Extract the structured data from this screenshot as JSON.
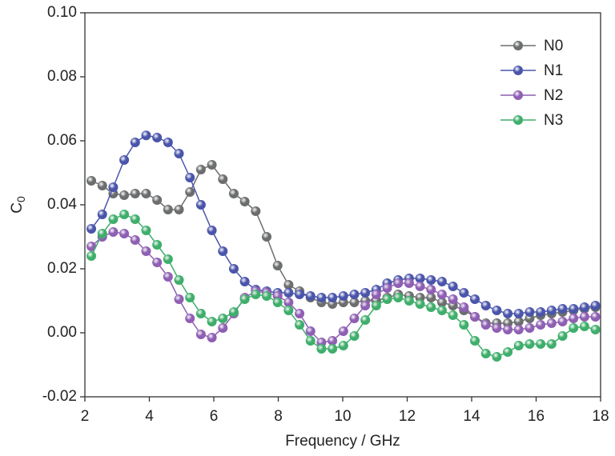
{
  "chart_data": {
    "type": "line",
    "x_label": "Frequency / GHz",
    "y_label": {
      "main": "C",
      "sub": "0"
    },
    "x": [
      2.2,
      2.54,
      2.88,
      3.22,
      3.56,
      3.9,
      4.24,
      4.58,
      4.92,
      5.26,
      5.6,
      5.94,
      6.28,
      6.62,
      6.96,
      7.3,
      7.64,
      7.98,
      8.32,
      8.66,
      9.0,
      9.34,
      9.68,
      10.02,
      10.36,
      10.7,
      11.04,
      11.38,
      11.72,
      12.06,
      12.4,
      12.74,
      13.08,
      13.42,
      13.76,
      14.1,
      14.44,
      14.78,
      15.12,
      15.46,
      15.8,
      16.14,
      16.48,
      16.82,
      17.16,
      17.5,
      17.84
    ],
    "series": [
      {
        "name": "N0",
        "color": "#6b6d6e",
        "values": [
          0.0475,
          0.046,
          0.0435,
          0.043,
          0.0435,
          0.0435,
          0.0415,
          0.0385,
          0.0385,
          0.044,
          0.051,
          0.0525,
          0.048,
          0.0435,
          0.041,
          0.038,
          0.03,
          0.021,
          0.015,
          0.013,
          0.011,
          0.0095,
          0.009,
          0.0095,
          0.0095,
          0.01,
          0.01,
          0.011,
          0.012,
          0.0115,
          0.011,
          0.011,
          0.0095,
          0.0085,
          0.007,
          0.005,
          0.003,
          0.003,
          0.003,
          0.0035,
          0.0045,
          0.0055,
          0.006,
          0.0065,
          0.007,
          0.0075,
          0.008
        ]
      },
      {
        "name": "N1",
        "color": "#4a55aa",
        "values": [
          0.0325,
          0.037,
          0.0455,
          0.054,
          0.0595,
          0.0617,
          0.061,
          0.0595,
          0.056,
          0.0485,
          0.04,
          0.032,
          0.0255,
          0.02,
          0.016,
          0.0135,
          0.013,
          0.0125,
          0.0125,
          0.012,
          0.0115,
          0.011,
          0.011,
          0.0115,
          0.012,
          0.0125,
          0.0135,
          0.0155,
          0.0165,
          0.017,
          0.017,
          0.0165,
          0.016,
          0.0145,
          0.0125,
          0.0105,
          0.0085,
          0.007,
          0.006,
          0.006,
          0.0065,
          0.0065,
          0.007,
          0.0075,
          0.0075,
          0.008,
          0.0085
        ]
      },
      {
        "name": "N2",
        "color": "#8e5fb3",
        "values": [
          0.027,
          0.03,
          0.0315,
          0.031,
          0.029,
          0.0255,
          0.022,
          0.0175,
          0.0105,
          0.0045,
          -0.0005,
          -0.0015,
          0.0015,
          0.006,
          0.011,
          0.013,
          0.0125,
          0.0115,
          0.0095,
          0.006,
          0.0005,
          -0.003,
          -0.0025,
          0.0005,
          0.0045,
          0.0085,
          0.012,
          0.014,
          0.0155,
          0.0155,
          0.0145,
          0.0135,
          0.012,
          0.0105,
          0.008,
          0.005,
          0.0025,
          0.0015,
          0.001,
          0.001,
          0.0015,
          0.0025,
          0.003,
          0.0035,
          0.0045,
          0.005,
          0.005
        ]
      },
      {
        "name": "N3",
        "color": "#3fae6b",
        "values": [
          0.024,
          0.031,
          0.0355,
          0.037,
          0.0355,
          0.032,
          0.0275,
          0.023,
          0.0165,
          0.011,
          0.006,
          0.0035,
          0.0045,
          0.0065,
          0.0105,
          0.012,
          0.0115,
          0.0095,
          0.007,
          0.0025,
          -0.0025,
          -0.005,
          -0.005,
          -0.004,
          -0.001,
          0.004,
          0.0085,
          0.0105,
          0.011,
          0.01,
          0.009,
          0.008,
          0.007,
          0.0055,
          0.0025,
          -0.0025,
          -0.0065,
          -0.0075,
          -0.006,
          -0.004,
          -0.0035,
          -0.0035,
          -0.0035,
          -0.001,
          0.0015,
          0.002,
          0.001
        ]
      }
    ],
    "xlim": [
      2,
      18
    ],
    "xticks": [
      2,
      4,
      6,
      8,
      10,
      12,
      14,
      16,
      18
    ],
    "ylim": [
      -0.02,
      0.1
    ],
    "yticks": [
      {
        "value": -0.02,
        "label": "-0.02"
      },
      {
        "value": 0,
        "label": "0.00"
      },
      {
        "value": 0.02,
        "label": "0.02"
      },
      {
        "value": 0.04,
        "label": "0.04"
      },
      {
        "value": 0.06,
        "label": "0.06"
      },
      {
        "value": 0.08,
        "label": "0.08"
      },
      {
        "value": 0.1,
        "label": "0.10"
      }
    ],
    "legend": "upper right",
    "grid": false
  }
}
